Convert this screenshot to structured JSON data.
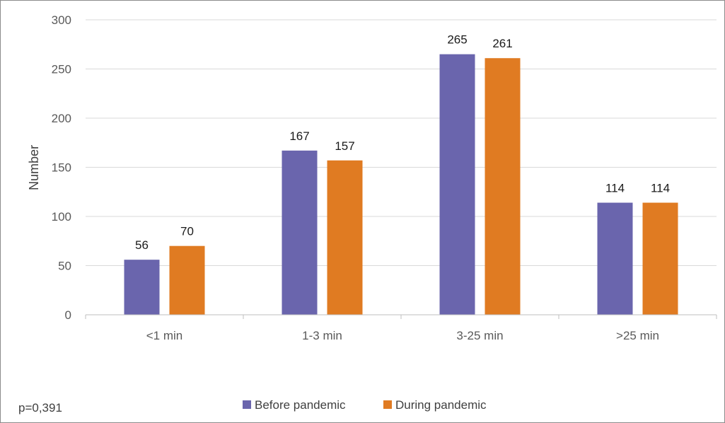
{
  "chart_data": {
    "type": "bar",
    "categories": [
      "<1 min",
      "1-3 min",
      "3-25 min",
      ">25 min"
    ],
    "series": [
      {
        "name": "Before pandemic",
        "color": "#6a65ad",
        "values": [
          56,
          167,
          265,
          114
        ]
      },
      {
        "name": "During pandemic",
        "color": "#e07b22",
        "values": [
          70,
          157,
          261,
          114
        ]
      }
    ],
    "title": "",
    "xlabel": "",
    "ylabel": "Number",
    "ylim": [
      0,
      300
    ],
    "yticks": [
      0,
      50,
      100,
      150,
      200,
      250,
      300
    ],
    "grid": true,
    "data_labels": true,
    "legend_position": "bottom"
  },
  "annotation": "p=0,391"
}
